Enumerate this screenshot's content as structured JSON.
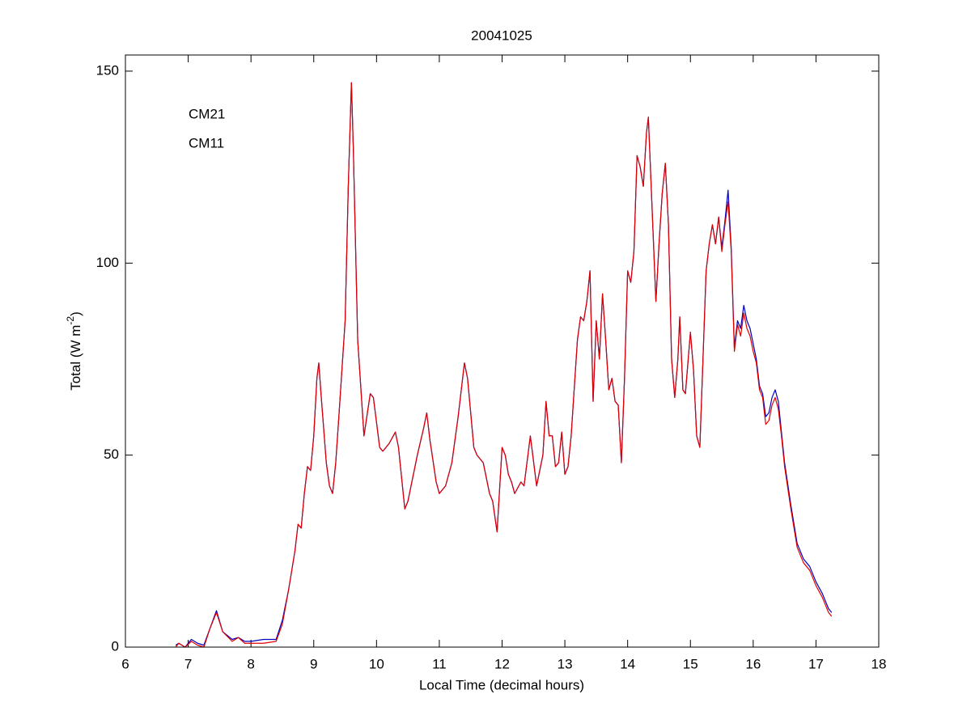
{
  "chart_data": {
    "type": "line",
    "title": "20041025",
    "xlabel": "Local Time (decimal hours)",
    "ylabel": [
      "Total (W m",
      "-2",
      ")"
    ],
    "xlim": [
      6,
      18
    ],
    "xticks": [
      6,
      7,
      8,
      9,
      10,
      11,
      12,
      13,
      14,
      15,
      16,
      17,
      18
    ],
    "ylim": [
      0,
      154.2
    ],
    "yticks": [
      0,
      50,
      100,
      150
    ],
    "x": [
      6.8,
      6.85,
      6.95,
      7.05,
      7.15,
      7.25,
      7.35,
      7.45,
      7.55,
      7.7,
      7.8,
      7.9,
      8.0,
      8.2,
      8.4,
      8.5,
      8.6,
      8.7,
      8.75,
      8.8,
      8.85,
      8.9,
      8.95,
      9.0,
      9.05,
      9.08,
      9.12,
      9.2,
      9.25,
      9.3,
      9.35,
      9.4,
      9.5,
      9.55,
      9.6,
      9.63,
      9.7,
      9.8,
      9.9,
      9.95,
      10.05,
      10.1,
      10.2,
      10.3,
      10.35,
      10.45,
      10.5,
      10.55,
      10.65,
      10.75,
      10.8,
      10.85,
      10.95,
      11.0,
      11.1,
      11.2,
      11.3,
      11.4,
      11.45,
      11.55,
      11.6,
      11.7,
      11.8,
      11.85,
      11.92,
      12.0,
      12.05,
      12.1,
      12.15,
      12.2,
      12.3,
      12.35,
      12.45,
      12.55,
      12.65,
      12.7,
      12.75,
      12.8,
      12.85,
      12.9,
      12.95,
      13.0,
      13.05,
      13.1,
      13.2,
      13.25,
      13.3,
      13.35,
      13.4,
      13.45,
      13.5,
      13.55,
      13.6,
      13.65,
      13.7,
      13.75,
      13.8,
      13.85,
      13.9,
      13.95,
      14.0,
      14.05,
      14.1,
      14.15,
      14.2,
      14.25,
      14.3,
      14.33,
      14.4,
      14.45,
      14.5,
      14.55,
      14.6,
      14.65,
      14.7,
      14.75,
      14.8,
      14.83,
      14.88,
      14.92,
      15.0,
      15.05,
      15.1,
      15.15,
      15.2,
      15.25,
      15.3,
      15.35,
      15.4,
      15.45,
      15.5,
      15.55,
      15.6,
      15.65,
      15.7,
      15.75,
      15.8,
      15.85,
      15.9,
      15.95,
      16.0,
      16.05,
      16.1,
      16.15,
      16.2,
      16.25,
      16.3,
      16.35,
      16.4,
      16.45,
      16.5,
      16.6,
      16.7,
      16.8,
      16.9,
      17.0,
      17.1,
      17.2,
      17.25
    ],
    "series": [
      {
        "name": "CM21",
        "color": "#0000c0",
        "values": [
          0.5,
          1,
          0,
          2,
          1,
          0.5,
          5,
          9.5,
          4,
          2,
          2.5,
          1.5,
          1.5,
          2,
          2,
          7,
          15,
          25,
          32,
          31,
          40,
          47,
          46,
          55,
          70,
          74,
          65,
          48,
          42,
          40,
          48,
          60,
          85,
          120,
          147,
          130,
          80,
          55,
          66,
          65,
          52,
          51,
          53,
          56,
          52,
          36,
          38,
          42,
          50,
          57,
          61,
          54,
          43,
          40,
          42,
          48,
          60,
          74,
          70,
          52,
          50,
          48,
          40,
          38,
          30,
          52,
          50,
          45,
          43,
          40,
          43,
          42,
          55,
          42,
          50,
          64,
          55,
          55,
          47,
          48,
          56,
          45,
          47,
          55,
          80,
          86,
          85,
          90,
          98,
          64,
          85,
          75,
          92,
          80,
          67,
          70,
          64,
          63,
          48,
          70,
          98,
          95,
          103,
          128,
          125,
          120,
          134,
          138,
          110,
          90,
          105,
          118,
          126,
          110,
          75,
          65,
          75,
          86,
          67,
          66,
          82,
          72,
          55,
          52,
          75,
          98,
          105,
          110,
          105,
          112,
          104,
          111,
          119,
          104,
          78,
          85,
          83,
          89,
          85,
          83,
          79,
          75,
          68,
          66,
          60,
          61,
          65,
          67,
          64,
          56,
          48,
          37,
          27,
          23,
          21,
          17,
          14,
          10,
          9
        ]
      },
      {
        "name": "CM11",
        "color": "#e00000",
        "values": [
          0,
          1,
          0,
          1.5,
          0.5,
          0,
          5,
          9,
          4,
          1.5,
          2.5,
          1,
          1,
          1,
          1.5,
          6,
          15,
          25,
          32,
          31,
          40,
          47,
          46,
          55,
          70,
          74,
          65,
          48,
          42,
          40,
          48,
          60,
          85,
          120,
          147,
          130,
          80,
          55,
          66,
          65,
          52,
          51,
          53,
          56,
          52,
          36,
          38,
          42,
          50,
          57,
          61,
          54,
          43,
          40,
          42,
          48,
          60,
          74,
          70,
          52,
          50,
          48,
          40,
          38,
          30,
          52,
          50,
          45,
          43,
          40,
          43,
          42,
          55,
          42,
          50,
          64,
          55,
          55,
          47,
          48,
          56,
          45,
          47,
          55,
          80,
          86,
          85,
          90,
          98,
          64,
          85,
          75,
          92,
          80,
          67,
          70,
          64,
          63,
          48,
          70,
          98,
          95,
          103,
          128,
          125,
          120,
          134,
          138,
          110,
          90,
          105,
          118,
          126,
          110,
          75,
          65,
          75,
          86,
          67,
          66,
          82,
          72,
          55,
          52,
          75,
          98,
          105,
          110,
          105,
          112,
          103,
          110,
          116,
          103,
          77,
          84,
          81,
          87,
          83,
          81,
          77,
          74,
          67,
          65,
          58,
          59,
          63,
          65,
          62,
          55,
          47,
          36,
          26,
          22,
          20,
          16,
          13,
          9,
          8
        ]
      }
    ]
  }
}
